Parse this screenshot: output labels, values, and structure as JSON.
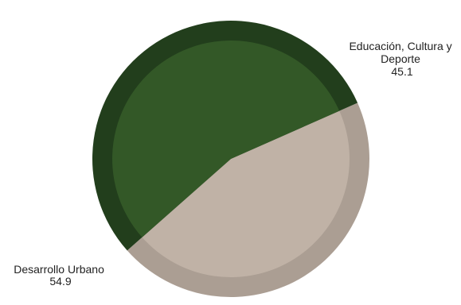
{
  "chart_data": {
    "type": "pie",
    "title": "",
    "slices": [
      {
        "label_lines": [
          "Educación, Cultura y",
          "Deporte"
        ],
        "value": 45.1,
        "value_label": "45.1",
        "outer_color": "#ab9e93",
        "inner_color": "#c0b2a6"
      },
      {
        "label_lines": [
          "Desarrollo Urbano"
        ],
        "value": 54.9,
        "value_label": "54.9",
        "outer_color": "#223e1c",
        "inner_color": "#335827"
      }
    ],
    "legend": "none"
  }
}
